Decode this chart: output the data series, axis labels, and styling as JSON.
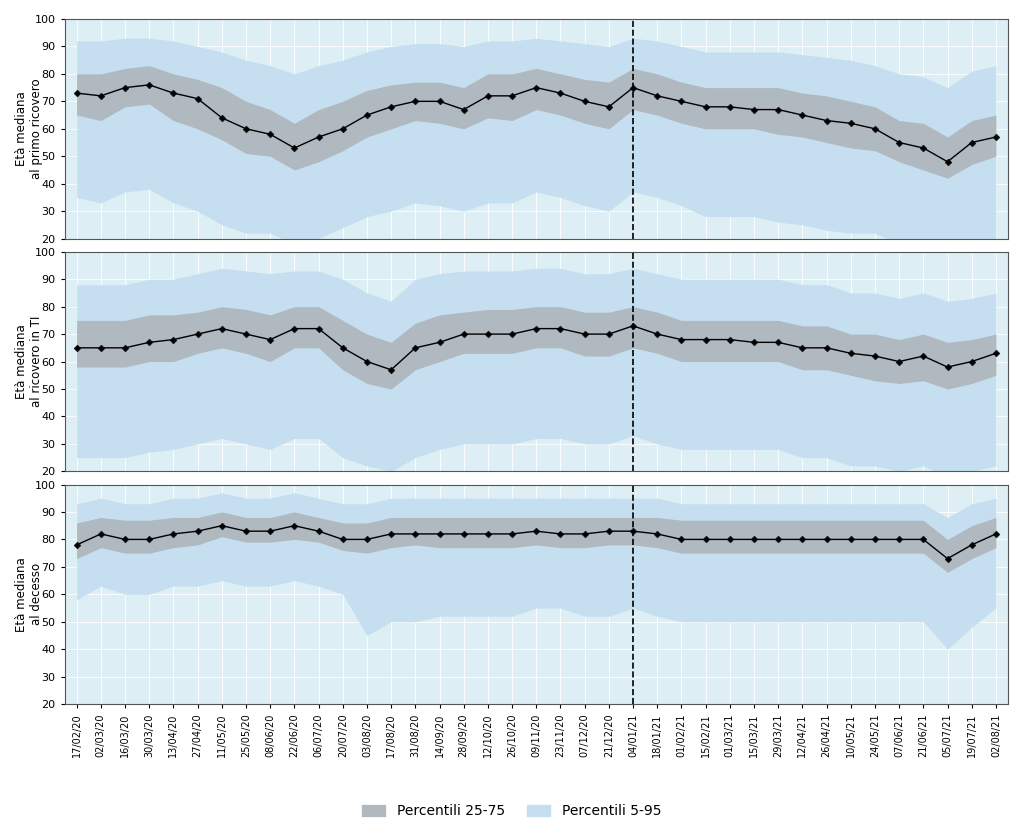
{
  "panel_ylabels": [
    "Età mediana\nal primo ricovero",
    "Età mediana\nal ricovero in TI",
    "Età mediana\nal decesso"
  ],
  "ylim": [
    20,
    100
  ],
  "yticks": [
    20,
    30,
    40,
    50,
    60,
    70,
    80,
    90,
    100
  ],
  "dashed_line_idx": 23,
  "bg_color": "#ddeef5",
  "band_25_75_color": "#b0b8c0",
  "band_5_95_color": "#c5dff0",
  "line_color": "black",
  "marker_color": "black",
  "x_dates": [
    "17/02/20",
    "02/03/20",
    "16/03/20",
    "30/03/20",
    "13/04/20",
    "27/04/20",
    "11/05/20",
    "25/05/20",
    "08/06/20",
    "22/06/20",
    "06/07/20",
    "20/07/20",
    "03/08/20",
    "17/08/20",
    "31/08/20",
    "14/09/20",
    "28/09/20",
    "12/10/20",
    "26/10/20",
    "09/11/20",
    "23/11/20",
    "07/12/20",
    "21/12/20",
    "04/01/21",
    "18/01/21",
    "01/02/21",
    "15/02/21",
    "01/03/21",
    "15/03/21",
    "29/03/21",
    "12/04/21",
    "26/04/21",
    "10/05/21",
    "24/05/21",
    "07/06/21",
    "21/06/21",
    "05/07/21",
    "19/07/21",
    "02/08/21"
  ],
  "panel1": {
    "median": [
      73,
      72,
      75,
      76,
      73,
      71,
      64,
      60,
      58,
      53,
      57,
      60,
      65,
      68,
      70,
      70,
      67,
      72,
      72,
      75,
      73,
      70,
      68,
      75,
      72,
      70,
      68,
      68,
      67,
      67,
      65,
      63,
      62,
      60,
      55,
      53,
      48,
      55,
      57
    ],
    "p25": [
      65,
      63,
      68,
      69,
      63,
      60,
      56,
      51,
      50,
      45,
      48,
      52,
      57,
      60,
      63,
      62,
      60,
      64,
      63,
      67,
      65,
      62,
      60,
      67,
      65,
      62,
      60,
      60,
      60,
      58,
      57,
      55,
      53,
      52,
      48,
      45,
      42,
      47,
      50
    ],
    "p75": [
      80,
      80,
      82,
      83,
      80,
      78,
      75,
      70,
      67,
      62,
      67,
      70,
      74,
      76,
      77,
      77,
      75,
      80,
      80,
      82,
      80,
      78,
      77,
      82,
      80,
      77,
      75,
      75,
      75,
      75,
      73,
      72,
      70,
      68,
      63,
      62,
      57,
      63,
      65
    ],
    "p5": [
      35,
      33,
      37,
      38,
      33,
      30,
      25,
      22,
      22,
      18,
      20,
      24,
      28,
      30,
      33,
      32,
      30,
      33,
      33,
      37,
      35,
      32,
      30,
      37,
      35,
      32,
      28,
      28,
      28,
      26,
      25,
      23,
      22,
      22,
      18,
      16,
      12,
      17,
      20
    ],
    "p95": [
      92,
      92,
      93,
      93,
      92,
      90,
      88,
      85,
      83,
      80,
      83,
      85,
      88,
      90,
      91,
      91,
      90,
      92,
      92,
      93,
      92,
      91,
      90,
      93,
      92,
      90,
      88,
      88,
      88,
      88,
      87,
      86,
      85,
      83,
      80,
      79,
      75,
      81,
      83
    ]
  },
  "panel2": {
    "median": [
      65,
      65,
      65,
      67,
      68,
      70,
      72,
      70,
      68,
      72,
      72,
      65,
      60,
      57,
      65,
      67,
      70,
      70,
      70,
      72,
      72,
      70,
      70,
      73,
      70,
      68,
      68,
      68,
      67,
      67,
      65,
      65,
      63,
      62,
      60,
      62,
      58,
      60,
      63
    ],
    "p25": [
      58,
      58,
      58,
      60,
      60,
      63,
      65,
      63,
      60,
      65,
      65,
      57,
      52,
      50,
      57,
      60,
      63,
      63,
      63,
      65,
      65,
      62,
      62,
      65,
      63,
      60,
      60,
      60,
      60,
      60,
      57,
      57,
      55,
      53,
      52,
      53,
      50,
      52,
      55
    ],
    "p75": [
      75,
      75,
      75,
      77,
      77,
      78,
      80,
      79,
      77,
      80,
      80,
      75,
      70,
      67,
      74,
      77,
      78,
      79,
      79,
      80,
      80,
      78,
      78,
      80,
      78,
      75,
      75,
      75,
      75,
      75,
      73,
      73,
      70,
      70,
      68,
      70,
      67,
      68,
      70
    ],
    "p5": [
      25,
      25,
      25,
      27,
      28,
      30,
      32,
      30,
      28,
      32,
      32,
      25,
      22,
      20,
      25,
      28,
      30,
      30,
      30,
      32,
      32,
      30,
      30,
      33,
      30,
      28,
      28,
      28,
      28,
      28,
      25,
      25,
      22,
      22,
      20,
      22,
      18,
      20,
      22
    ],
    "p95": [
      88,
      88,
      88,
      90,
      90,
      92,
      94,
      93,
      92,
      93,
      93,
      90,
      85,
      82,
      90,
      92,
      93,
      93,
      93,
      94,
      94,
      92,
      92,
      94,
      92,
      90,
      90,
      90,
      90,
      90,
      88,
      88,
      85,
      85,
      83,
      85,
      82,
      83,
      85
    ]
  },
  "panel3": {
    "median": [
      78,
      82,
      80,
      80,
      82,
      83,
      85,
      83,
      83,
      85,
      83,
      80,
      80,
      82,
      82,
      82,
      82,
      82,
      82,
      83,
      82,
      82,
      83,
      83,
      82,
      80,
      80,
      80,
      80,
      80,
      80,
      80,
      80,
      80,
      80,
      80,
      73,
      78,
      82
    ],
    "p25": [
      73,
      77,
      75,
      75,
      77,
      78,
      81,
      79,
      79,
      80,
      79,
      76,
      75,
      77,
      78,
      77,
      77,
      77,
      77,
      78,
      77,
      77,
      78,
      78,
      77,
      75,
      75,
      75,
      75,
      75,
      75,
      75,
      75,
      75,
      75,
      75,
      68,
      73,
      77
    ],
    "p75": [
      86,
      88,
      87,
      87,
      88,
      88,
      90,
      88,
      88,
      90,
      88,
      86,
      86,
      88,
      88,
      88,
      88,
      88,
      88,
      88,
      88,
      88,
      88,
      88,
      88,
      87,
      87,
      87,
      87,
      87,
      87,
      87,
      87,
      87,
      87,
      87,
      80,
      85,
      88
    ],
    "p5": [
      58,
      63,
      60,
      60,
      63,
      63,
      65,
      63,
      63,
      65,
      63,
      60,
      45,
      50,
      50,
      52,
      52,
      52,
      52,
      55,
      55,
      52,
      52,
      55,
      52,
      50,
      50,
      50,
      50,
      50,
      50,
      50,
      50,
      50,
      50,
      50,
      40,
      48,
      55
    ],
    "p95": [
      93,
      95,
      93,
      93,
      95,
      95,
      97,
      95,
      95,
      97,
      95,
      93,
      93,
      95,
      95,
      95,
      95,
      95,
      95,
      95,
      95,
      95,
      95,
      95,
      95,
      93,
      93,
      93,
      93,
      93,
      93,
      93,
      93,
      93,
      93,
      93,
      88,
      93,
      95
    ]
  },
  "legend_25_75_label": "Percentili 25-75",
  "legend_5_95_label": "Percentili 5-95"
}
